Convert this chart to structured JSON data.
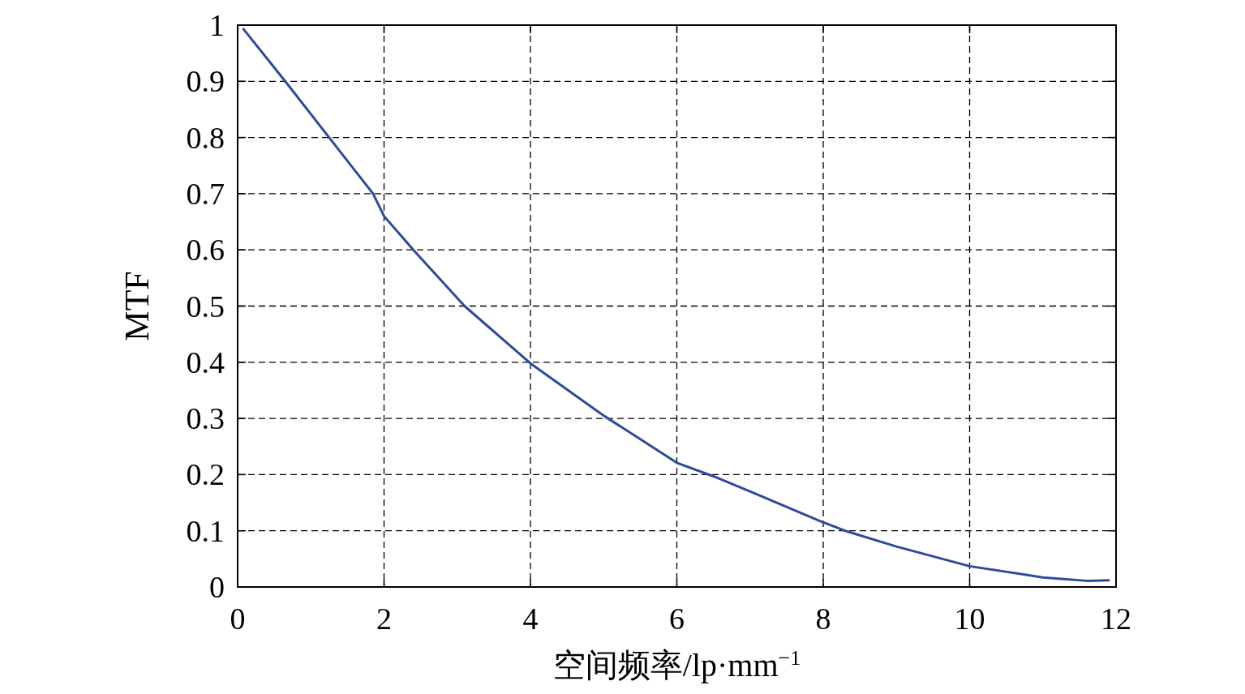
{
  "chart_data": {
    "type": "line",
    "xlabel": "空间频率/lp·mm$^{−1}$",
    "ylabel": "MTF",
    "xlim": [
      0,
      12
    ],
    "xticks": [
      0,
      2,
      4,
      6,
      8,
      10,
      12
    ],
    "ylim": [
      0,
      1
    ],
    "yticks": [
      0,
      0.1,
      0.2,
      0.3,
      0.4,
      0.5,
      0.6,
      0.7,
      0.8,
      0.9,
      1
    ],
    "grid": true,
    "line_style": "solid",
    "marker": "none",
    "series": [
      {
        "color": "#2e4a9b",
        "x": [
          0.08,
          0.65,
          1.25,
          1.85,
          2,
          2.4,
          3.1,
          4,
          5,
          6,
          6.5,
          7,
          8,
          8.3,
          9,
          10,
          11,
          11.6,
          11.9
        ],
        "values": [
          0.993,
          0.9,
          0.8,
          0.7,
          0.66,
          0.6,
          0.5,
          0.398,
          0.305,
          0.221,
          0.197,
          0.17,
          0.115,
          0.1,
          0.072,
          0.037,
          0.017,
          0.011,
          0.012
        ]
      }
    ]
  }
}
